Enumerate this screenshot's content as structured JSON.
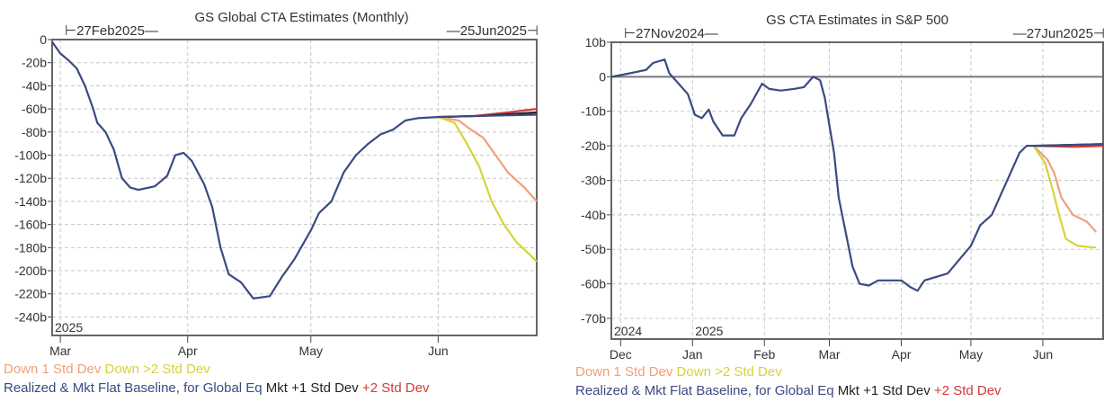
{
  "chart_data": [
    {
      "type": "line",
      "title": "GS Global CTA Estimates (Monthly)",
      "range_start_label": "27Feb2025",
      "range_end_label": "25Jun2025",
      "xlim": [
        "2025-02-27",
        "2025-06-25"
      ],
      "ylim": [
        -256,
        0
      ],
      "y_ticks": [
        0,
        -20,
        -40,
        -60,
        -80,
        -100,
        -120,
        -140,
        -160,
        -180,
        -200,
        -220,
        -240
      ],
      "y_tick_labels": [
        "0",
        "-20b",
        "-40b",
        "-60b",
        "-80b",
        "-100b",
        "-120b",
        "-140b",
        "-160b",
        "-180b",
        "-200b",
        "-220b",
        "-240b"
      ],
      "x_ticks": [
        {
          "date": "2025-03-01",
          "label": "Mar"
        },
        {
          "date": "2025-04-01",
          "label": "Apr"
        },
        {
          "date": "2025-05-01",
          "label": "May"
        },
        {
          "date": "2025-06-01",
          "label": "Jun"
        }
      ],
      "year_labels": [
        {
          "date": "2025-02-27",
          "label": "2025"
        }
      ],
      "grid": true,
      "zero_line": false,
      "legend_rows": [
        [
          {
            "name": "Down 1 Std Dev",
            "color": "#f0a07a"
          },
          {
            "name": "Down >2 Std Dev",
            "color": "#d4d43a"
          }
        ],
        [
          {
            "name": "Realized & Mkt Flat Baseline, for Global Eq",
            "color": "#3b4a82"
          },
          {
            "name": "Mkt +1 Std Dev",
            "color": "#222222"
          },
          {
            "name": "+2 Std Dev",
            "color": "#d03a3a"
          }
        ]
      ],
      "series": [
        {
          "name": "+2 Std Dev",
          "color": "#d03a3a",
          "points": [
            [
              "2025-06-01",
              -67
            ],
            [
              "2025-06-10",
              -66
            ],
            [
              "2025-06-18",
              -63
            ],
            [
              "2025-06-25",
              -60
            ]
          ]
        },
        {
          "name": "Mkt +1 Std Dev",
          "color": "#222222",
          "points": [
            [
              "2025-06-01",
              -67
            ],
            [
              "2025-06-12",
              -66
            ],
            [
              "2025-06-25",
              -63
            ]
          ]
        },
        {
          "name": "Down 1 Std Dev",
          "color": "#f0a07a",
          "points": [
            [
              "2025-06-01",
              -67
            ],
            [
              "2025-06-06",
              -70
            ],
            [
              "2025-06-09",
              -78
            ],
            [
              "2025-06-12",
              -85
            ],
            [
              "2025-06-15",
              -100
            ],
            [
              "2025-06-18",
              -115
            ],
            [
              "2025-06-22",
              -128
            ],
            [
              "2025-06-25",
              -140
            ]
          ]
        },
        {
          "name": "Down >2 Std Dev",
          "color": "#d4d43a",
          "points": [
            [
              "2025-06-01",
              -67
            ],
            [
              "2025-06-05",
              -72
            ],
            [
              "2025-06-08",
              -90
            ],
            [
              "2025-06-11",
              -110
            ],
            [
              "2025-06-14",
              -140
            ],
            [
              "2025-06-17",
              -160
            ],
            [
              "2025-06-20",
              -175
            ],
            [
              "2025-06-23",
              -185
            ],
            [
              "2025-06-25",
              -192
            ]
          ]
        },
        {
          "name": "Realized & Mkt Flat Baseline, for Global Eq",
          "color": "#3b4a82",
          "points": [
            [
              "2025-02-27",
              -2
            ],
            [
              "2025-03-01",
              -12
            ],
            [
              "2025-03-03",
              -18
            ],
            [
              "2025-03-05",
              -25
            ],
            [
              "2025-03-07",
              -40
            ],
            [
              "2025-03-09",
              -60
            ],
            [
              "2025-03-10",
              -72
            ],
            [
              "2025-03-12",
              -80
            ],
            [
              "2025-03-14",
              -95
            ],
            [
              "2025-03-16",
              -120
            ],
            [
              "2025-03-18",
              -128
            ],
            [
              "2025-03-20",
              -130
            ],
            [
              "2025-03-24",
              -127
            ],
            [
              "2025-03-27",
              -118
            ],
            [
              "2025-03-29",
              -100
            ],
            [
              "2025-03-31",
              -98
            ],
            [
              "2025-04-02",
              -105
            ],
            [
              "2025-04-05",
              -125
            ],
            [
              "2025-04-07",
              -145
            ],
            [
              "2025-04-09",
              -180
            ],
            [
              "2025-04-11",
              -203
            ],
            [
              "2025-04-14",
              -210
            ],
            [
              "2025-04-17",
              -224
            ],
            [
              "2025-04-21",
              -222
            ],
            [
              "2025-04-24",
              -205
            ],
            [
              "2025-04-27",
              -190
            ],
            [
              "2025-05-01",
              -165
            ],
            [
              "2025-05-03",
              -150
            ],
            [
              "2025-05-06",
              -140
            ],
            [
              "2025-05-09",
              -115
            ],
            [
              "2025-05-12",
              -100
            ],
            [
              "2025-05-15",
              -90
            ],
            [
              "2025-05-18",
              -82
            ],
            [
              "2025-05-21",
              -78
            ],
            [
              "2025-05-24",
              -70
            ],
            [
              "2025-05-27",
              -68
            ],
            [
              "2025-06-01",
              -67
            ],
            [
              "2025-06-12",
              -66
            ],
            [
              "2025-06-25",
              -65
            ]
          ]
        }
      ]
    },
    {
      "type": "line",
      "title": "GS CTA Estimates in S&P 500",
      "range_start_label": "27Nov2024",
      "range_end_label": "27Jun2025",
      "xlim": [
        "2024-11-27",
        "2025-06-27"
      ],
      "ylim": [
        -76,
        10
      ],
      "y_ticks": [
        10,
        0,
        -10,
        -20,
        -30,
        -40,
        -50,
        -60,
        -70
      ],
      "y_tick_labels": [
        "10b",
        "0",
        "-10b",
        "-20b",
        "-30b",
        "-40b",
        "-50b",
        "-60b",
        "-70b"
      ],
      "x_ticks": [
        {
          "date": "2024-12-01",
          "label": "Dec"
        },
        {
          "date": "2025-01-01",
          "label": "Jan"
        },
        {
          "date": "2025-02-01",
          "label": "Feb"
        },
        {
          "date": "2025-03-01",
          "label": "Mar"
        },
        {
          "date": "2025-04-01",
          "label": "Apr"
        },
        {
          "date": "2025-05-01",
          "label": "May"
        },
        {
          "date": "2025-06-01",
          "label": "Jun"
        }
      ],
      "year_labels": [
        {
          "date": "2024-11-27",
          "label": "2024"
        },
        {
          "date": "2025-01-01",
          "label": "2025"
        }
      ],
      "grid": true,
      "zero_line": true,
      "legend_rows": [
        [
          {
            "name": "Down 1 Std Dev",
            "color": "#f0a07a"
          },
          {
            "name": "Down >2 Std Dev",
            "color": "#d4d43a"
          }
        ],
        [
          {
            "name": "Realized & Mkt Flat Baseline, for Global Eq",
            "color": "#3b4a82"
          },
          {
            "name": "Mkt +1 Std Dev",
            "color": "#222222"
          },
          {
            "name": "+2 Std Dev",
            "color": "#d03a3a"
          }
        ]
      ],
      "series": [
        {
          "name": "+2 Std Dev",
          "color": "#d03a3a",
          "points": [
            [
              "2025-05-28",
              -20
            ],
            [
              "2025-06-15",
              -20.3
            ],
            [
              "2025-06-27",
              -20
            ]
          ]
        },
        {
          "name": "Mkt +1 Std Dev",
          "color": "#222222",
          "points": [
            [
              "2025-05-28",
              -20
            ],
            [
              "2025-06-27",
              -19.5
            ]
          ]
        },
        {
          "name": "Down 1 Std Dev",
          "color": "#f0a07a",
          "points": [
            [
              "2025-05-28",
              -20
            ],
            [
              "2025-06-03",
              -24
            ],
            [
              "2025-06-06",
              -28
            ],
            [
              "2025-06-09",
              -35
            ],
            [
              "2025-06-14",
              -40
            ],
            [
              "2025-06-20",
              -42
            ],
            [
              "2025-06-24",
              -45
            ]
          ]
        },
        {
          "name": "Down >2 Std Dev",
          "color": "#d4d43a",
          "points": [
            [
              "2025-05-28",
              -20
            ],
            [
              "2025-06-02",
              -25
            ],
            [
              "2025-06-05",
              -32
            ],
            [
              "2025-06-08",
              -40
            ],
            [
              "2025-06-11",
              -47
            ],
            [
              "2025-06-16",
              -49
            ],
            [
              "2025-06-24",
              -49.5
            ]
          ]
        },
        {
          "name": "Realized & Mkt Flat Baseline, for Global Eq",
          "color": "#3b4a82",
          "points": [
            [
              "2024-11-27",
              0
            ],
            [
              "2024-12-05",
              1
            ],
            [
              "2024-12-12",
              2
            ],
            [
              "2024-12-15",
              4
            ],
            [
              "2024-12-20",
              5
            ],
            [
              "2024-12-22",
              1
            ],
            [
              "2024-12-26",
              -2
            ],
            [
              "2024-12-30",
              -5
            ],
            [
              "2025-01-02",
              -11
            ],
            [
              "2025-01-05",
              -12
            ],
            [
              "2025-01-08",
              -9.5
            ],
            [
              "2025-01-10",
              -13
            ],
            [
              "2025-01-14",
              -17
            ],
            [
              "2025-01-19",
              -17
            ],
            [
              "2025-01-22",
              -12
            ],
            [
              "2025-01-26",
              -8
            ],
            [
              "2025-01-31",
              -2
            ],
            [
              "2025-02-03",
              -3.5
            ],
            [
              "2025-02-08",
              -4
            ],
            [
              "2025-02-14",
              -3.5
            ],
            [
              "2025-02-18",
              -3
            ],
            [
              "2025-02-22",
              0
            ],
            [
              "2025-02-25",
              -1
            ],
            [
              "2025-02-27",
              -6
            ],
            [
              "2025-03-01",
              -14
            ],
            [
              "2025-03-03",
              -22
            ],
            [
              "2025-03-05",
              -35
            ],
            [
              "2025-03-08",
              -45
            ],
            [
              "2025-03-11",
              -55
            ],
            [
              "2025-03-14",
              -60
            ],
            [
              "2025-03-18",
              -60.5
            ],
            [
              "2025-03-22",
              -59
            ],
            [
              "2025-03-28",
              -59
            ],
            [
              "2025-04-01",
              -59
            ],
            [
              "2025-04-05",
              -61
            ],
            [
              "2025-04-08",
              -62
            ],
            [
              "2025-04-11",
              -59
            ],
            [
              "2025-04-16",
              -58
            ],
            [
              "2025-04-21",
              -57
            ],
            [
              "2025-04-26",
              -53
            ],
            [
              "2025-05-01",
              -49
            ],
            [
              "2025-05-05",
              -43
            ],
            [
              "2025-05-10",
              -40
            ],
            [
              "2025-05-14",
              -34
            ],
            [
              "2025-05-18",
              -28
            ],
            [
              "2025-05-22",
              -22
            ],
            [
              "2025-05-25",
              -20
            ],
            [
              "2025-06-01",
              -20
            ],
            [
              "2025-06-27",
              -19.5
            ]
          ]
        }
      ]
    }
  ]
}
